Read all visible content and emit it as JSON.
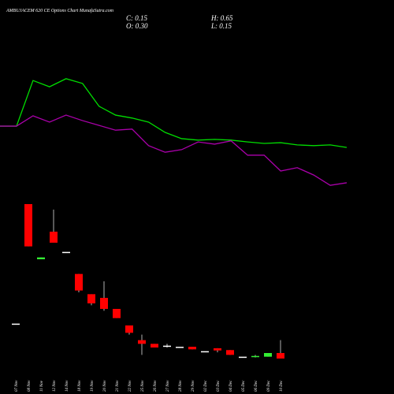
{
  "chart_data": {
    "type": "candlestick",
    "title": "AMBUJACEM 620 CE Options Chart MunafaSutra.com",
    "stats": [
      "C: 0.15",
      "H: 0.65",
      "O: 0.30",
      "L: 0.15"
    ],
    "categories": [
      "07 Nov",
      "08 Nov",
      "11 Nov",
      "12 Nov",
      "14 Nov",
      "18 Nov",
      "19 Nov",
      "20 Nov",
      "21 Nov",
      "22 Nov",
      "25 Nov",
      "26 Nov",
      "27 Nov",
      "28 Nov",
      "29 Nov",
      "02 Dec",
      "03 Dec",
      "04 Dec",
      "05 Dec",
      "06 Dec",
      "09 Dec",
      "10 Dec"
    ],
    "open": [
      1.1,
      4.35,
      2.85,
      3.6,
      3.05,
      2.45,
      1.9,
      1.8,
      1.5,
      1.05,
      0.65,
      0.55,
      0.5,
      0.47,
      0.47,
      0.35,
      0.43,
      0.38,
      0.2,
      0.2,
      0.2,
      0.3
    ],
    "high": [
      1.1,
      4.35,
      2.9,
      4.2,
      3.05,
      2.45,
      1.9,
      2.25,
      1.5,
      1.05,
      0.8,
      0.55,
      0.55,
      0.47,
      0.47,
      0.35,
      0.43,
      0.38,
      0.2,
      0.25,
      0.3,
      0.65
    ],
    "low": [
      1.1,
      3.2,
      2.85,
      3.3,
      3.05,
      1.95,
      1.6,
      1.45,
      1.25,
      0.8,
      0.25,
      0.45,
      0.45,
      0.47,
      0.4,
      0.35,
      0.32,
      0.25,
      0.2,
      0.18,
      0.2,
      0.15
    ],
    "close": [
      1.1,
      3.2,
      2.9,
      3.3,
      3.05,
      2.0,
      1.65,
      1.5,
      1.25,
      0.85,
      0.55,
      0.45,
      0.5,
      0.47,
      0.4,
      0.35,
      0.37,
      0.25,
      0.2,
      0.22,
      0.3,
      0.15
    ],
    "up_color": "#33ee33",
    "down_color": "#ff0000",
    "flat_color": "#ffffff",
    "lines": [
      {
        "color": "#00dd00",
        "values": [
          6.47,
          6.47,
          7.71,
          7.54,
          7.76,
          7.63,
          7.01,
          6.77,
          6.69,
          6.58,
          6.3,
          6.13,
          6.09,
          6.11,
          6.09,
          6.04,
          6.0,
          6.02,
          5.96,
          5.94,
          5.96,
          5.89
        ]
      },
      {
        "color": "#aa00aa",
        "values": [
          6.47,
          6.47,
          6.75,
          6.58,
          6.77,
          6.62,
          6.49,
          6.36,
          6.39,
          5.94,
          5.76,
          5.83,
          6.04,
          5.98,
          6.07,
          5.68,
          5.68,
          5.25,
          5.34,
          5.14,
          4.86,
          4.93
        ]
      }
    ],
    "ylim": [
      0,
      9.9
    ]
  }
}
